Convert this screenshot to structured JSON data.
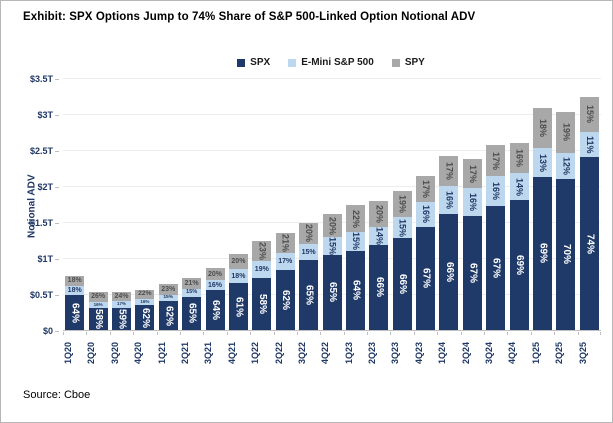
{
  "title": "Exhibit: SPX Options Jump to 74% Share of S&P 500-Linked Option Notional ADV",
  "source": "Source: Cboe",
  "legend": [
    {
      "label": "SPX",
      "color": "#1f3a68"
    },
    {
      "label": "E-Mini S&P 500",
      "color": "#bdd7ee"
    },
    {
      "label": "SPY",
      "color": "#a8a8a8"
    }
  ],
  "chart_data": {
    "type": "bar",
    "stacked": true,
    "title": "Exhibit: SPX Options Jump to 74% Share of S&P 500-Linked Option Notional ADV",
    "xlabel": "",
    "ylabel": "Notional ADV",
    "ylim": [
      0,
      3.5
    ],
    "unit": "USD trillions notional average daily volume",
    "grid": "faint horizontal",
    "legend_position": "top center",
    "y_ticks": [
      {
        "value": 0,
        "label": "$0"
      },
      {
        "value": 0.5,
        "label": "$0.5T"
      },
      {
        "value": 1,
        "label": "$1T"
      },
      {
        "value": 1.5,
        "label": "$1.5T"
      },
      {
        "value": 2,
        "label": "$2T"
      },
      {
        "value": 2.5,
        "label": "$2.5T"
      },
      {
        "value": 3,
        "label": "$3T"
      },
      {
        "value": 3.5,
        "label": "$3.5T"
      }
    ],
    "categories": [
      "1Q20",
      "2Q20",
      "3Q20",
      "4Q20",
      "1Q21",
      "2Q21",
      "3Q21",
      "4Q21",
      "1Q22",
      "2Q22",
      "3Q22",
      "4Q22",
      "1Q23",
      "2Q23",
      "3Q23",
      "4Q23",
      "1Q24",
      "2Q24",
      "3Q24",
      "4Q24",
      "1Q25",
      "2Q25",
      "3Q25"
    ],
    "total_notional_T_est": [
      0.75,
      0.53,
      0.53,
      0.55,
      0.64,
      0.71,
      0.86,
      1.07,
      1.24,
      1.35,
      1.49,
      1.61,
      1.72,
      1.79,
      1.93,
      2.14,
      2.44,
      2.37,
      2.57,
      2.62,
      3.08,
      3.0,
      3.24
    ],
    "series": [
      {
        "name": "SPX",
        "color": "#1f3a68",
        "label_color": "#ffffff",
        "share_pct": [
          64,
          58,
          59,
          62,
          62,
          65,
          64,
          61,
          58,
          62,
          65,
          65,
          64,
          66,
          66,
          67,
          66,
          67,
          67,
          69,
          69,
          70,
          74
        ]
      },
      {
        "name": "E-Mini S&P 500",
        "color": "#bdd7ee",
        "label_color": "#1f3864",
        "share_pct": [
          18,
          16,
          17,
          16,
          15,
          15,
          16,
          18,
          19,
          17,
          15,
          15,
          15,
          14,
          15,
          16,
          16,
          16,
          16,
          14,
          13,
          12,
          11
        ]
      },
      {
        "name": "SPY",
        "color": "#a8a8a8",
        "label_color": "#4d4d4d",
        "share_pct": [
          18,
          26,
          24,
          22,
          23,
          21,
          20,
          20,
          23,
          21,
          20,
          20,
          22,
          20,
          19,
          17,
          17,
          17,
          17,
          16,
          18,
          19,
          15
        ]
      }
    ]
  }
}
